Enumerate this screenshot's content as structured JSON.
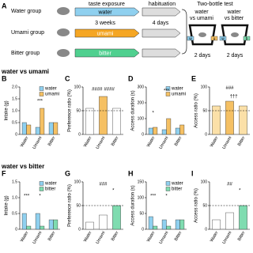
{
  "diagram": {
    "panel": "A",
    "groups": [
      "Water group",
      "Umami group",
      "Bitter group"
    ],
    "phases": [
      "taste exposure",
      "habituation"
    ],
    "durations": [
      "3 weeks",
      "4 days"
    ],
    "exposures": [
      "water",
      "umami",
      "bitter"
    ],
    "test_title": "Two-bottle test",
    "tests": [
      {
        "line1": "water",
        "line2": "vs umami",
        "bottles": [
          "w",
          "u"
        ],
        "duration": "2 days"
      },
      {
        "line1": "water",
        "line2": "vs bitter",
        "bottles": [
          "w",
          "b"
        ],
        "duration": "2 days"
      }
    ]
  },
  "headings": [
    "water vs umami",
    "water vs bitter"
  ],
  "chart_data": [
    {
      "type": "bar",
      "panel": "B",
      "y_label": "Intake (g)",
      "categories": [
        "Water",
        "Umami",
        "Bitter"
      ],
      "series": [
        {
          "name": "water",
          "color": "#8fd0ef",
          "values": [
            0.5,
            0.3,
            0.5
          ]
        },
        {
          "name": "umami",
          "color": "#f5c063",
          "values": [
            0.4,
            1.1,
            0.5
          ]
        }
      ],
      "ylim": [
        0,
        2
      ],
      "yticks": [
        0,
        0.5,
        {
          "value": 1,
          "label": "1.0"
        },
        1.5,
        {
          "value": 2,
          "label": "2.0"
        }
      ],
      "annotations": [
        "***"
      ]
    },
    {
      "type": "bar",
      "panel": "C",
      "y_label": "Preference ratio (%)",
      "categories": [
        "Water",
        "Umami",
        "Bitter"
      ],
      "values": [
        55,
        80,
        55
      ],
      "colors": [
        "#ffffff",
        "#f5c063",
        "#ffffff"
      ],
      "ylim": [
        0,
        100
      ],
      "yticks": [
        0,
        50,
        100
      ],
      "reference_line": 50,
      "annotations": [
        "####",
        "####"
      ]
    },
    {
      "type": "bar",
      "panel": "D",
      "y_label": "Access duration (s)",
      "categories": [
        "Water",
        "Umami",
        "Bitter"
      ],
      "series": [
        {
          "name": "water",
          "color": "#8fd0ef",
          "values": [
            40,
            30,
            40
          ]
        },
        {
          "name": "umami",
          "color": "#f5c063",
          "values": [
            45,
            100,
            60
          ]
        }
      ],
      "ylim": [
        0,
        300
      ],
      "yticks": [
        0,
        100,
        200,
        300
      ],
      "annotations": [
        "*",
        "***"
      ]
    },
    {
      "type": "bar",
      "panel": "E",
      "y_label": "Access ratio (%)",
      "categories": [
        "Water",
        "Umami",
        "Bitter"
      ],
      "values": [
        60,
        70,
        60
      ],
      "colors": [
        "#fbe0a8",
        "#f5c063",
        "#fbe0a8"
      ],
      "ylim": [
        0,
        100
      ],
      "yticks": [
        0,
        50,
        100
      ],
      "reference_line": 50,
      "annotations": [
        "###",
        "†††"
      ]
    },
    {
      "type": "bar",
      "panel": "F",
      "y_label": "Intake (g)",
      "categories": [
        "Water",
        "Umami",
        "Bitter"
      ],
      "series": [
        {
          "name": "water",
          "color": "#8fd0ef",
          "values": [
            0.5,
            0.5,
            0.3
          ]
        },
        {
          "name": "bitter",
          "color": "#7fdcb0",
          "values": [
            0.1,
            0.1,
            0.3
          ]
        }
      ],
      "ylim": [
        0,
        1.5
      ],
      "yticks": [
        0,
        0.5,
        {
          "value": 1,
          "label": "1.0"
        },
        1.5
      ],
      "annotations": [
        "***",
        "*"
      ]
    },
    {
      "type": "bar",
      "panel": "G",
      "y_label": "Preference ratio (%)",
      "categories": [
        "Water",
        "Umami",
        "Bitter"
      ],
      "values": [
        15,
        30,
        50
      ],
      "colors": [
        "#ffffff",
        "#ffffff",
        "#7fdcb0"
      ],
      "ylim": [
        0,
        100
      ],
      "yticks": [
        0,
        50,
        100
      ],
      "reference_line": 50,
      "annotations": [
        "###",
        "*"
      ]
    },
    {
      "type": "bar",
      "panel": "H",
      "y_label": "Access duration (s)",
      "categories": [
        "Water",
        "Umami",
        "Bitter"
      ],
      "series": [
        {
          "name": "water",
          "color": "#8fd0ef",
          "values": [
            40,
            30,
            30
          ]
        },
        {
          "name": "bitter",
          "color": "#7fdcb0",
          "values": [
            10,
            10,
            30
          ]
        }
      ],
      "ylim": [
        0,
        150
      ],
      "yticks": [
        0,
        50,
        100,
        150
      ],
      "annotations": [
        "***",
        "*"
      ]
    },
    {
      "type": "bar",
      "panel": "I",
      "y_label": "Access ratio (%)",
      "categories": [
        "Water",
        "Umami",
        "Bitter"
      ],
      "values": [
        20,
        35,
        50
      ],
      "colors": [
        "#ffffff",
        "#ffffff",
        "#7fdcb0"
      ],
      "ylim": [
        0,
        100
      ],
      "yticks": [
        0,
        50,
        100
      ],
      "reference_line": 50,
      "annotations": [
        "##",
        "*"
      ]
    }
  ]
}
